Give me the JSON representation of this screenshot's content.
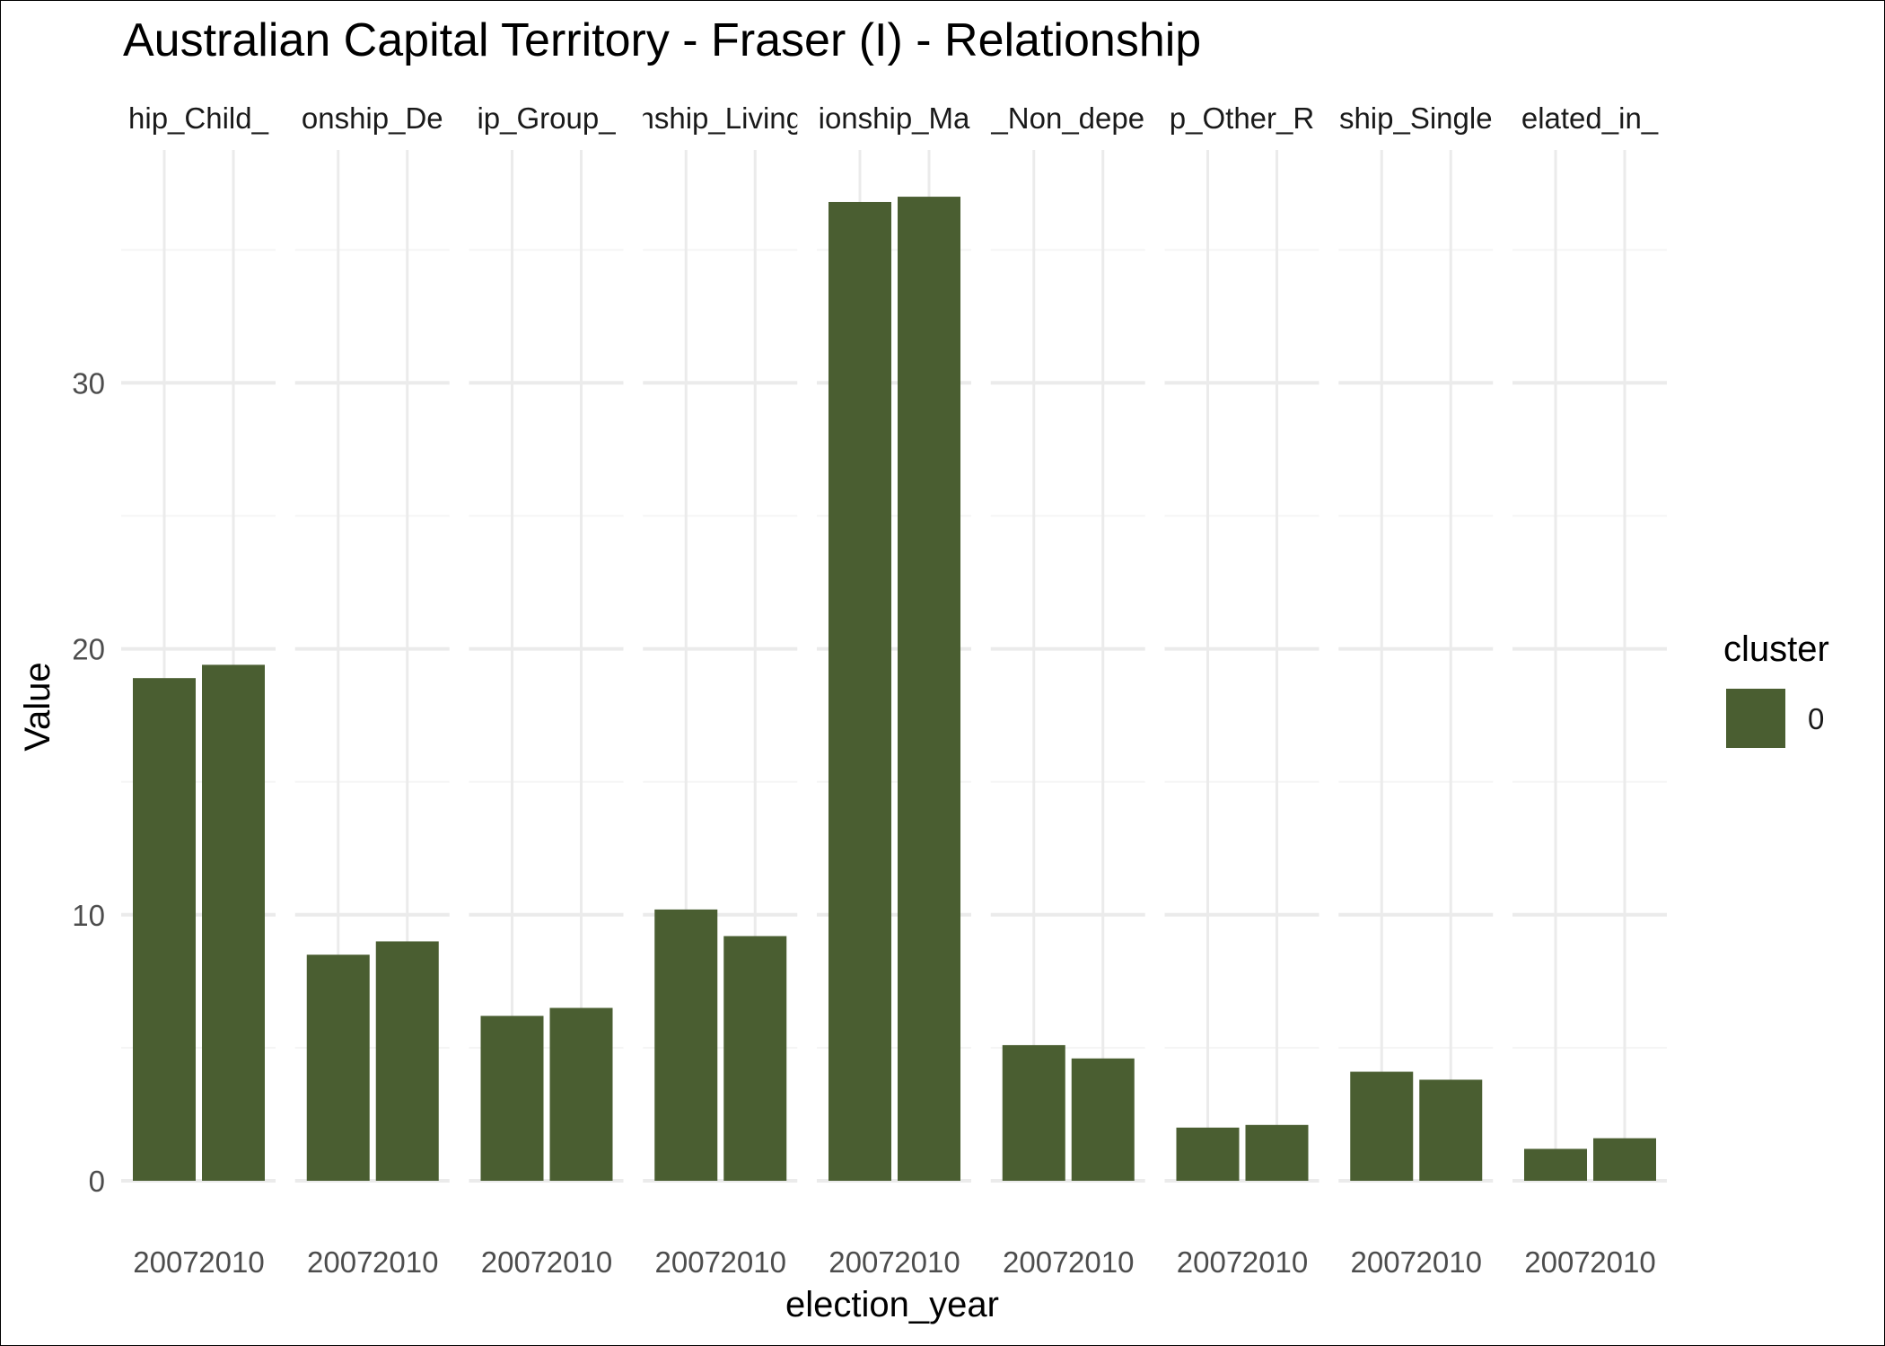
{
  "chart_data": {
    "type": "bar",
    "title": "Australian Capital Territory - Fraser (I) - Relationship",
    "xlabel": "election_year",
    "ylabel": "Value",
    "x": [
      "2007",
      "2010"
    ],
    "ylim": [
      0,
      37.5
    ],
    "y_ticks": [
      0,
      10,
      20,
      30
    ],
    "grid": true,
    "facets": [
      {
        "label": "hip_Child_",
        "values": [
          18.9,
          19.4
        ]
      },
      {
        "label": "onship_De",
        "values": [
          8.5,
          9.0
        ]
      },
      {
        "label": "ip_Group_",
        "values": [
          6.2,
          6.5
        ]
      },
      {
        "label": "nship_Living",
        "values": [
          10.2,
          9.2
        ]
      },
      {
        "label": "ionship_Ma",
        "values": [
          36.8,
          37.0
        ]
      },
      {
        "label": "_Non_depe",
        "values": [
          5.1,
          4.6
        ]
      },
      {
        "label": "p_Other_R",
        "values": [
          2.0,
          2.1
        ]
      },
      {
        "label": "ship_Single",
        "values": [
          4.1,
          3.8
        ]
      },
      {
        "label": "elated_in_",
        "values": [
          1.2,
          1.6
        ]
      }
    ],
    "legend": {
      "title": "cluster",
      "placement": "right",
      "items": [
        {
          "label": "0",
          "color": "#4a5e31"
        }
      ]
    },
    "colors": {
      "bar": "#4a5e31",
      "grid_major": "#ebebeb",
      "grid_minor": "#f5f5f5",
      "background": "#ffffff"
    }
  }
}
